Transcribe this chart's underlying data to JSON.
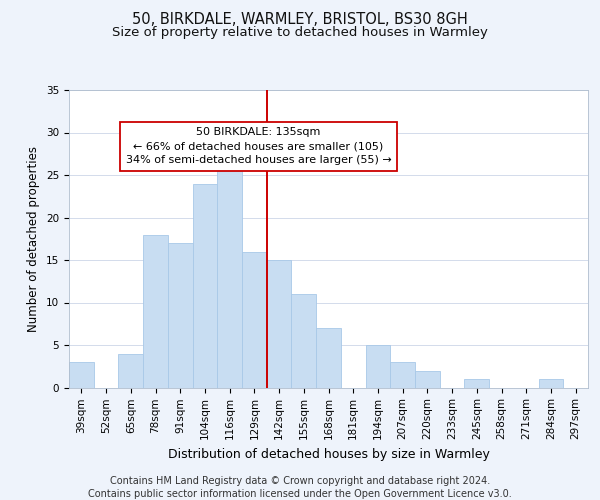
{
  "title": "50, BIRKDALE, WARMLEY, BRISTOL, BS30 8GH",
  "subtitle": "Size of property relative to detached houses in Warmley",
  "xlabel": "Distribution of detached houses by size in Warmley",
  "ylabel": "Number of detached properties",
  "bar_color": "#c8ddf2",
  "bar_edge_color": "#a8c8e8",
  "categories": [
    "39sqm",
    "52sqm",
    "65sqm",
    "78sqm",
    "91sqm",
    "104sqm",
    "116sqm",
    "129sqm",
    "142sqm",
    "155sqm",
    "168sqm",
    "181sqm",
    "194sqm",
    "207sqm",
    "220sqm",
    "233sqm",
    "245sqm",
    "258sqm",
    "271sqm",
    "284sqm",
    "297sqm"
  ],
  "values": [
    3,
    0,
    4,
    18,
    17,
    24,
    26,
    16,
    15,
    11,
    7,
    0,
    5,
    3,
    2,
    0,
    1,
    0,
    0,
    1,
    0
  ],
  "ylim": [
    0,
    35
  ],
  "yticks": [
    0,
    5,
    10,
    15,
    20,
    25,
    30,
    35
  ],
  "vline_x": 7.5,
  "vline_color": "#cc0000",
  "annotation_line1": "50 BIRKDALE: 135sqm",
  "annotation_line2": "← 66% of detached houses are smaller (105)",
  "annotation_line3": "34% of semi-detached houses are larger (55) →",
  "footer_line1": "Contains HM Land Registry data © Crown copyright and database right 2024.",
  "footer_line2": "Contains public sector information licensed under the Open Government Licence v3.0.",
  "background_color": "#eef3fb",
  "plot_bg_color": "#ffffff",
  "title_fontsize": 10.5,
  "subtitle_fontsize": 9.5,
  "xlabel_fontsize": 9,
  "ylabel_fontsize": 8.5,
  "tick_fontsize": 7.5,
  "footer_fontsize": 7,
  "ann_fontsize": 8
}
